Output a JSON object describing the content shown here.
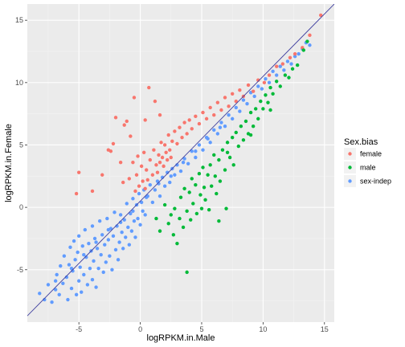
{
  "chart_data": {
    "type": "scatter",
    "xlabel": "logRPKM.in.Male",
    "ylabel": "logRPKM.in.Female",
    "xlim": [
      -9.2,
      15.8
    ],
    "ylim": [
      -9.2,
      16.3
    ],
    "x_ticks": [
      -5,
      0,
      5,
      10,
      15
    ],
    "y_ticks": [
      -5,
      0,
      5,
      10,
      15
    ],
    "x_tick_labels": [
      "-5",
      "0",
      "5",
      "10",
      "15"
    ],
    "y_tick_labels": [
      "-5",
      "0",
      "5",
      "10",
      "15"
    ],
    "grid": true,
    "legend_position": "right",
    "legend": {
      "title": "Sex.bias",
      "entries": [
        {
          "label": "female",
          "color": "#F8766D"
        },
        {
          "label": "male",
          "color": "#00BA38"
        },
        {
          "label": "sex-indep",
          "color": "#619CFF"
        }
      ]
    },
    "reference_line": {
      "slope": 1.0,
      "intercept": 0.5,
      "color": "#3F3F9F"
    },
    "colors": {
      "female": "#F8766D",
      "male": "#00BA38",
      "sex-indep": "#619CFF",
      "panel": "#EBEBEB",
      "grid_major": "#FFFFFF",
      "grid_minor": "#F4F4F4"
    },
    "series": [
      {
        "name": "sex-indep",
        "color": "#619CFF",
        "points": [
          [
            -8.2,
            -6.9
          ],
          [
            -7.8,
            -7.4
          ],
          [
            -7.5,
            -6.2
          ],
          [
            -7.2,
            -7.6
          ],
          [
            -6.9,
            -6.6
          ],
          [
            -6.8,
            -5.4
          ],
          [
            -6.6,
            -7.0
          ],
          [
            -6.5,
            -4.7
          ],
          [
            -6.3,
            -6.1
          ],
          [
            -6.2,
            -3.9
          ],
          [
            -6.0,
            -5.6
          ],
          [
            -5.9,
            -7.4
          ],
          [
            -5.8,
            -4.6
          ],
          [
            -5.7,
            -3.2
          ],
          [
            -5.6,
            -6.5
          ],
          [
            -5.5,
            -5.1
          ],
          [
            -5.4,
            -2.7
          ],
          [
            -5.3,
            -4.2
          ],
          [
            -5.2,
            -7.0
          ],
          [
            -5.1,
            -3.6
          ],
          [
            -5.0,
            -5.9
          ],
          [
            -5.0,
            -2.3
          ],
          [
            -4.9,
            -4.8
          ],
          [
            -4.8,
            -6.8
          ],
          [
            -4.7,
            -3.1
          ],
          [
            -4.6,
            -5.4
          ],
          [
            -4.5,
            -1.8
          ],
          [
            -4.4,
            -4.0
          ],
          [
            -4.3,
            -6.2
          ],
          [
            -4.2,
            -2.9
          ],
          [
            -4.1,
            -4.9
          ],
          [
            -4.0,
            -3.5
          ],
          [
            -3.9,
            -1.5
          ],
          [
            -3.9,
            -5.8
          ],
          [
            -3.8,
            -4.3
          ],
          [
            -3.7,
            -2.5
          ],
          [
            -3.6,
            -6.4
          ],
          [
            -3.5,
            -3.3
          ],
          [
            -3.4,
            -4.9
          ],
          [
            -3.3,
            -1.1
          ],
          [
            -3.2,
            -3.8
          ],
          [
            -3.1,
            -2.2
          ],
          [
            -3.0,
            -5.2
          ],
          [
            -2.9,
            -3.0
          ],
          [
            -2.8,
            -4.4
          ],
          [
            -2.7,
            -0.9
          ],
          [
            -2.6,
            -2.6
          ],
          [
            -2.5,
            -3.9
          ],
          [
            -2.4,
            -1.7
          ],
          [
            -2.3,
            -5.0
          ],
          [
            -2.2,
            -2.3
          ],
          [
            -2.1,
            -0.4
          ],
          [
            -2.0,
            -3.4
          ],
          [
            -1.9,
            -1.5
          ],
          [
            -1.8,
            -4.2
          ],
          [
            -1.7,
            -2.8
          ],
          [
            -1.6,
            -0.6
          ],
          [
            -1.5,
            -2.0
          ],
          [
            -1.4,
            -3.3
          ],
          [
            -1.3,
            -1.0
          ],
          [
            -1.2,
            -2.4
          ],
          [
            -1.1,
            0.3
          ],
          [
            -1.0,
            -1.6
          ],
          [
            -0.9,
            -3.0
          ],
          [
            -0.8,
            -0.5
          ],
          [
            -0.7,
            -1.9
          ],
          [
            -0.6,
            0.7
          ],
          [
            -0.5,
            -1.1
          ],
          [
            -0.4,
            -2.4
          ],
          [
            -0.3,
            0.2
          ],
          [
            -0.2,
            -0.9
          ],
          [
            -0.1,
            1.1
          ],
          [
            0.0,
            -1.4
          ],
          [
            0.1,
            0.4
          ],
          [
            0.2,
            -0.3
          ],
          [
            0.3,
            1.4
          ],
          [
            0.4,
            -0.6
          ],
          [
            0.6,
            0.9
          ],
          [
            0.8,
            1.8
          ],
          [
            1.0,
            0.4
          ],
          [
            1.2,
            1.4
          ],
          [
            1.4,
            2.1
          ],
          [
            1.6,
            0.9
          ],
          [
            1.8,
            2.4
          ],
          [
            2.0,
            1.7
          ],
          [
            2.2,
            2.8
          ],
          [
            2.4,
            2.0
          ],
          [
            2.6,
            3.1
          ],
          [
            2.8,
            2.6
          ],
          [
            3.0,
            3.4
          ],
          [
            3.3,
            2.9
          ],
          [
            3.6,
            3.9
          ],
          [
            3.9,
            3.5
          ],
          [
            4.2,
            4.5
          ],
          [
            4.5,
            4.0
          ],
          [
            4.8,
            5.0
          ],
          [
            5.1,
            4.6
          ],
          [
            5.4,
            5.6
          ],
          [
            5.7,
            5.2
          ],
          [
            6.0,
            6.2
          ],
          [
            6.3,
            5.9
          ],
          [
            6.6,
            6.8
          ],
          [
            6.9,
            6.5
          ],
          [
            7.2,
            7.4
          ],
          [
            7.5,
            7.1
          ],
          [
            7.8,
            8.0
          ],
          [
            8.1,
            7.7
          ],
          [
            8.4,
            8.6
          ],
          [
            8.7,
            8.3
          ],
          [
            9.0,
            9.2
          ],
          [
            9.3,
            8.9
          ],
          [
            9.6,
            9.7
          ],
          [
            9.9,
            9.5
          ],
          [
            10.2,
            10.3
          ],
          [
            10.5,
            10.0
          ],
          [
            10.8,
            10.9
          ],
          [
            11.1,
            10.6
          ],
          [
            11.4,
            11.3
          ],
          [
            11.7,
            11.0
          ],
          [
            12.0,
            11.7
          ],
          [
            12.3,
            11.5
          ],
          [
            12.6,
            12.1
          ],
          [
            12.9,
            12.3
          ],
          [
            13.2,
            12.7
          ],
          [
            13.5,
            13.2
          ],
          [
            13.8,
            13.0
          ],
          [
            -6.9,
            -5.9
          ],
          [
            -5.6,
            -4.9
          ],
          [
            -4.6,
            -3.8
          ],
          [
            -3.6,
            -2.8
          ],
          [
            -2.6,
            -1.8
          ],
          [
            -1.6,
            -1.2
          ],
          [
            -0.6,
            -0.3
          ],
          [
            0.5,
            0.8
          ],
          [
            1.5,
            1.9
          ],
          [
            2.5,
            2.5
          ],
          [
            3.5,
            3.6
          ],
          [
            4.5,
            4.5
          ],
          [
            5.5,
            5.5
          ],
          [
            6.5,
            6.4
          ]
        ]
      },
      {
        "name": "female",
        "color": "#F8766D",
        "points": [
          [
            -5.2,
            1.1
          ],
          [
            -5.0,
            2.8
          ],
          [
            -3.9,
            1.3
          ],
          [
            -3.1,
            2.6
          ],
          [
            -2.6,
            4.6
          ],
          [
            -2.4,
            4.5
          ],
          [
            -2.2,
            5.1
          ],
          [
            -2.0,
            7.2
          ],
          [
            -1.6,
            3.6
          ],
          [
            -1.4,
            2.0
          ],
          [
            -1.3,
            6.6
          ],
          [
            -1.1,
            6.9
          ],
          [
            -0.9,
            2.3
          ],
          [
            -0.8,
            5.7
          ],
          [
            -0.6,
            3.6
          ],
          [
            -0.5,
            8.8
          ],
          [
            -0.4,
            1.3
          ],
          [
            -0.3,
            2.6
          ],
          [
            -0.2,
            4.1
          ],
          [
            -0.1,
            1.7
          ],
          [
            0.1,
            3.3
          ],
          [
            0.2,
            2.1
          ],
          [
            0.3,
            4.4
          ],
          [
            0.4,
            1.5
          ],
          [
            0.4,
            7.0
          ],
          [
            0.5,
            3.0
          ],
          [
            0.6,
            2.2
          ],
          [
            0.7,
            9.6
          ],
          [
            0.8,
            3.8
          ],
          [
            1.0,
            2.6
          ],
          [
            1.1,
            4.6
          ],
          [
            1.2,
            8.5
          ],
          [
            1.3,
            3.4
          ],
          [
            1.4,
            2.8
          ],
          [
            1.5,
            4.2
          ],
          [
            1.6,
            3.6
          ],
          [
            1.6,
            7.4
          ],
          [
            1.7,
            5.2
          ],
          [
            1.8,
            4.0
          ],
          [
            1.9,
            3.3
          ],
          [
            2.0,
            5.0
          ],
          [
            2.1,
            4.4
          ],
          [
            2.2,
            3.8
          ],
          [
            2.3,
            5.8
          ],
          [
            2.4,
            4.6
          ],
          [
            2.5,
            4.0
          ],
          [
            2.6,
            5.3
          ],
          [
            2.8,
            6.1
          ],
          [
            3.0,
            5.1
          ],
          [
            3.2,
            6.4
          ],
          [
            3.4,
            5.6
          ],
          [
            3.6,
            6.8
          ],
          [
            3.8,
            5.9
          ],
          [
            4.0,
            7.0
          ],
          [
            4.2,
            6.3
          ],
          [
            4.5,
            7.3
          ],
          [
            4.8,
            6.7
          ],
          [
            5.1,
            7.6
          ],
          [
            5.4,
            7.1
          ],
          [
            5.7,
            8.0
          ],
          [
            6.0,
            7.4
          ],
          [
            6.3,
            8.4
          ],
          [
            6.6,
            7.8
          ],
          [
            6.9,
            8.8
          ],
          [
            7.2,
            8.1
          ],
          [
            7.5,
            9.1
          ],
          [
            7.8,
            8.5
          ],
          [
            8.1,
            9.4
          ],
          [
            8.4,
            8.9
          ],
          [
            8.8,
            9.8
          ],
          [
            9.2,
            9.3
          ],
          [
            9.6,
            10.2
          ],
          [
            10.1,
            10.0
          ],
          [
            10.5,
            10.6
          ],
          [
            11.1,
            11.3
          ],
          [
            11.6,
            11.5
          ],
          [
            12.2,
            12.0
          ],
          [
            12.6,
            12.3
          ],
          [
            13.2,
            12.8
          ],
          [
            13.8,
            13.8
          ],
          [
            14.7,
            15.4
          ]
        ]
      },
      {
        "name": "male",
        "color": "#00BA38",
        "points": [
          [
            1.3,
            -0.9
          ],
          [
            1.6,
            -1.9
          ],
          [
            2.0,
            0.2
          ],
          [
            2.3,
            -1.3
          ],
          [
            2.5,
            -0.6
          ],
          [
            2.7,
            -2.2
          ],
          [
            2.8,
            -0.1
          ],
          [
            3.0,
            -2.9
          ],
          [
            3.2,
            -0.9
          ],
          [
            3.3,
            0.8
          ],
          [
            3.5,
            -1.6
          ],
          [
            3.6,
            1.5
          ],
          [
            3.8,
            -0.3
          ],
          [
            4.0,
            1.2
          ],
          [
            4.1,
            -1.0
          ],
          [
            4.2,
            2.3
          ],
          [
            4.3,
            0.3
          ],
          [
            4.5,
            1.8
          ],
          [
            4.6,
            -0.5
          ],
          [
            4.8,
            2.7
          ],
          [
            4.9,
            1.0
          ],
          [
            5.0,
            -0.1
          ],
          [
            5.1,
            3.2
          ],
          [
            5.2,
            1.6
          ],
          [
            5.3,
            0.6
          ],
          [
            5.5,
            2.6
          ],
          [
            5.6,
            -0.2
          ],
          [
            5.7,
            3.4
          ],
          [
            5.8,
            1.7
          ],
          [
            6.0,
            4.2
          ],
          [
            6.1,
            2.5
          ],
          [
            6.2,
            1.1
          ],
          [
            6.4,
            3.8
          ],
          [
            6.5,
            2.1
          ],
          [
            6.7,
            4.6
          ],
          [
            6.9,
            3.0
          ],
          [
            7.0,
            -0.1
          ],
          [
            7.1,
            5.2
          ],
          [
            7.3,
            4.0
          ],
          [
            7.5,
            5.6
          ],
          [
            7.6,
            3.4
          ],
          [
            7.8,
            6.0
          ],
          [
            8.0,
            4.9
          ],
          [
            8.2,
            6.5
          ],
          [
            8.4,
            5.4
          ],
          [
            8.6,
            6.9
          ],
          [
            8.8,
            5.9
          ],
          [
            9.0,
            7.6
          ],
          [
            9.2,
            6.5
          ],
          [
            9.4,
            7.9
          ],
          [
            9.6,
            7.1
          ],
          [
            9.8,
            8.5
          ],
          [
            10.0,
            7.9
          ],
          [
            10.2,
            9.0
          ],
          [
            10.4,
            8.4
          ],
          [
            10.6,
            9.6
          ],
          [
            10.8,
            9.1
          ],
          [
            11.1,
            10.1
          ],
          [
            11.4,
            9.7
          ],
          [
            11.8,
            10.6
          ],
          [
            12.1,
            10.4
          ],
          [
            12.4,
            11.1
          ],
          [
            12.8,
            11.4
          ],
          [
            13.3,
            12.6
          ],
          [
            13.6,
            13.3
          ],
          [
            3.8,
            -5.2
          ],
          [
            6.4,
            -1.1
          ],
          [
            7.1,
            4.4
          ],
          [
            9.0,
            5.8
          ],
          [
            10.6,
            7.8
          ]
        ]
      }
    ]
  }
}
